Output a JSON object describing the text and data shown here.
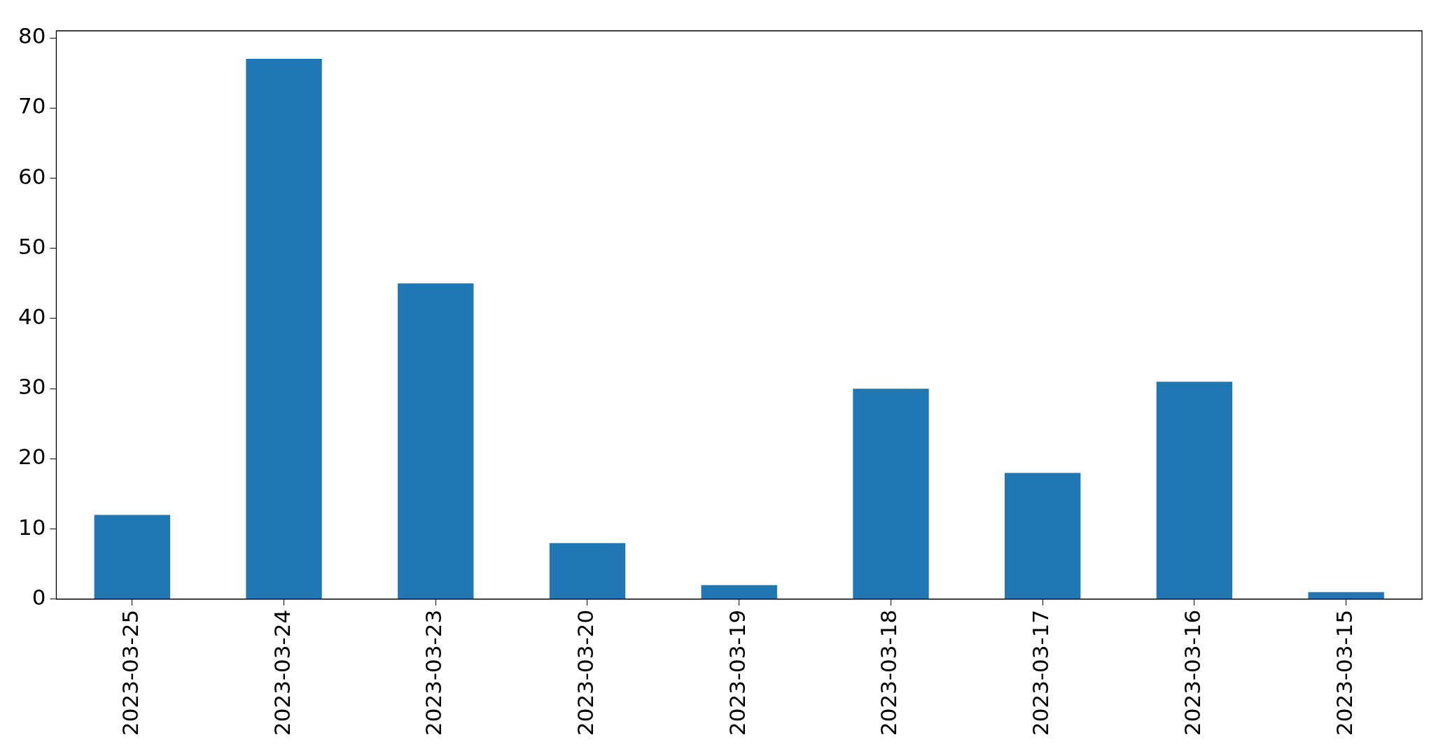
{
  "chart_data": {
    "type": "bar",
    "categories": [
      "2023-03-25",
      "2023-03-24",
      "2023-03-23",
      "2023-03-20",
      "2023-03-19",
      "2023-03-18",
      "2023-03-17",
      "2023-03-16",
      "2023-03-15"
    ],
    "values": [
      12,
      77,
      45,
      8,
      2,
      30,
      18,
      31,
      1
    ],
    "color": "#1f77b4",
    "ylim": [
      0,
      81
    ],
    "yticks": [
      0,
      10,
      20,
      30,
      40,
      50,
      60,
      70,
      80
    ],
    "grid": false,
    "legend": false
  }
}
